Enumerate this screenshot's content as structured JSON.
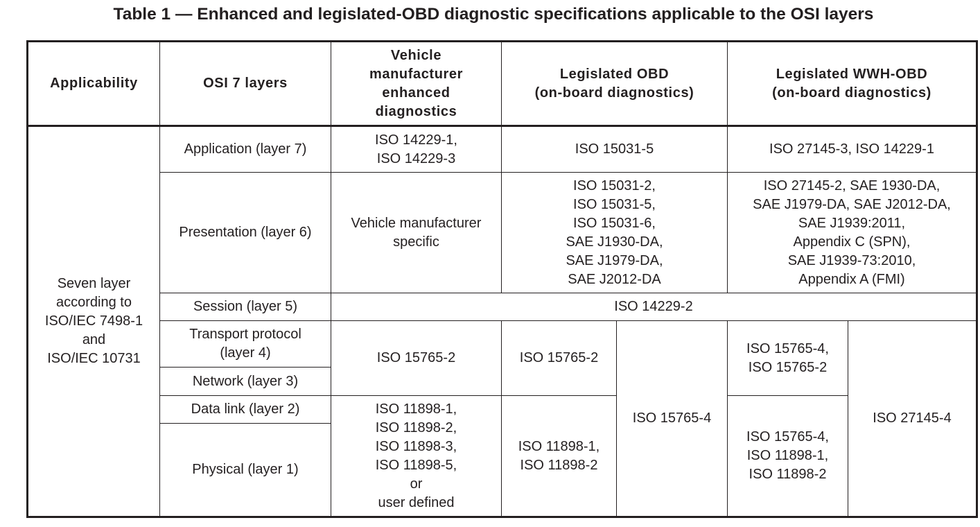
{
  "title": "Table 1 — Enhanced and legislated-OBD diagnostic specifications applicable to the OSI layers",
  "headers": {
    "applicability": "Applicability",
    "osi_layers": "OSI 7 layers",
    "vm_enhanced": "Vehicle\nmanufacturer\nenhanced\ndiagnostics",
    "legislated_obd": "Legislated OBD\n(on-board diagnostics)",
    "legislated_wwh": "Legislated WWH-OBD\n(on-board diagnostics)"
  },
  "applicability": "Seven layer\naccording to\nISO/IEC 7498-1\nand\nISO/IEC 10731",
  "layers": {
    "application": "Application (layer 7)",
    "presentation": "Presentation (layer 6)",
    "session": "Session (layer 5)",
    "transport": "Transport protocol\n(layer 4)",
    "network": "Network (layer 3)",
    "datalink": "Data link (layer 2)",
    "physical": "Physical (layer 1)"
  },
  "cells": {
    "app_vm": "ISO 14229-1,\nISO 14229-3",
    "app_obd": "ISO 15031-5",
    "app_wwh": "ISO 27145-3, ISO 14229-1",
    "pres_vm": "Vehicle manufacturer\nspecific",
    "pres_obd": "ISO 15031-2,\nISO 15031-5,\nISO 15031-6,\nSAE J1930-DA,\nSAE J1979-DA,\nSAE J2012-DA",
    "pres_wwh": "ISO 27145-2, SAE 1930-DA,\nSAE J1979-DA, SAE J2012-DA,\nSAE J1939:2011,\nAppendix C (SPN),\nSAE J1939-73:2010,\nAppendix A (FMI)",
    "session_all": "ISO 14229-2",
    "tn_vm": "ISO 15765-2",
    "tn_obd_a": "ISO 15765-2",
    "obd_b": "ISO 15765-4",
    "tn_wwh_a": "ISO 15765-4,\nISO 15765-2",
    "wwh_b": "ISO 27145-4",
    "dp_vm": "ISO 11898-1,\nISO 11898-2,\nISO 11898-3,\nISO 11898-5,\nor\nuser defined",
    "dp_obd_a": "ISO 11898-1,\nISO 11898-2",
    "dp_wwh_a": "ISO 15765-4,\nISO 11898-1,\nISO 11898-2"
  }
}
